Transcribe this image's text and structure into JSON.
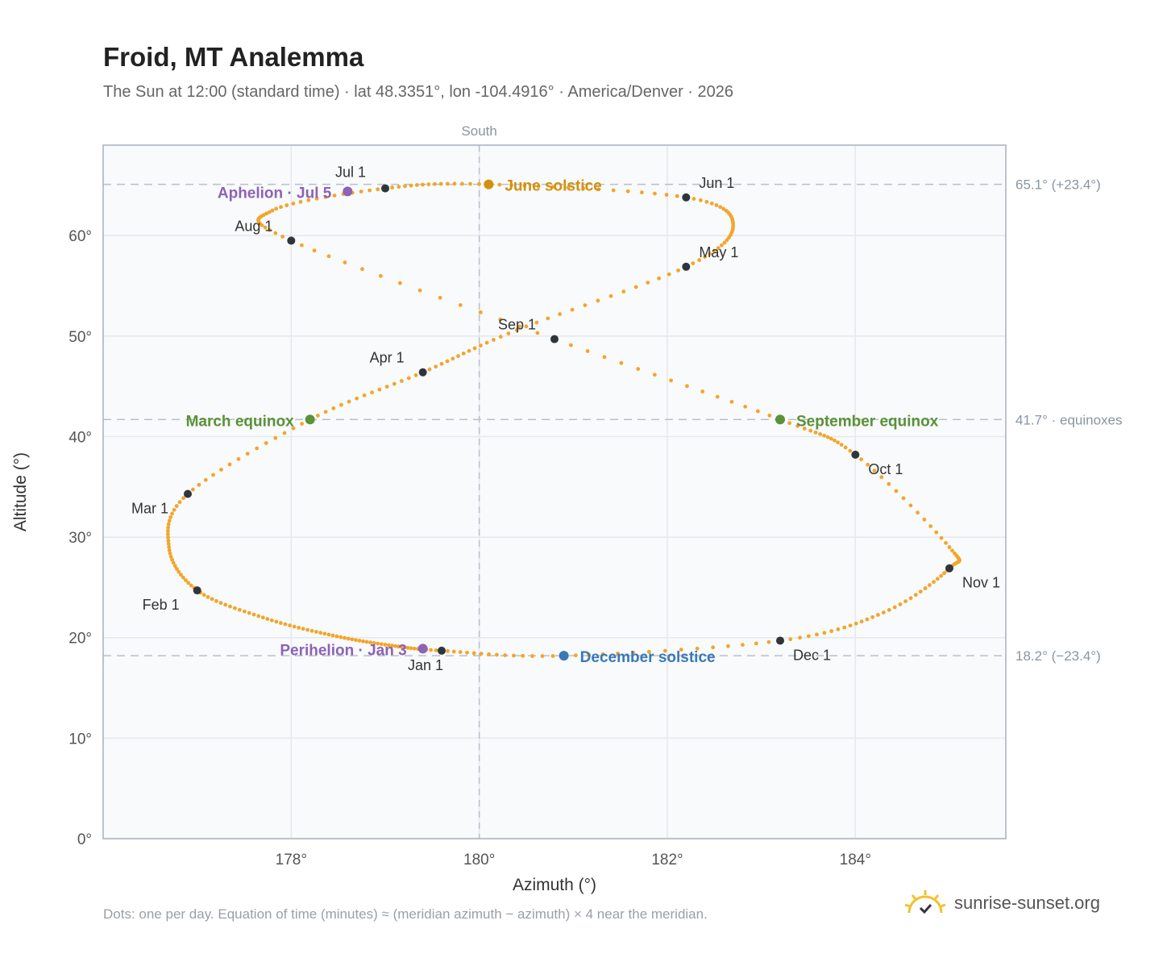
{
  "page": {
    "title": "Froid, MT Analemma",
    "subtitle": "The Sun at 12:00 (standard time) · lat 48.3351°, lon -104.4916° · America/Denver · 2026",
    "footnote": "Dots: one per day. Equation of time (minutes) ≈ (meridian azimuth − azimuth) × 4 near the meridian.",
    "brand": "sunrise-sunset.org",
    "brand_icon": "sun-logo-icon"
  },
  "colors": {
    "analemma": "#F2A62A",
    "month_marker": "#2F353B",
    "june_solstice": "#D4900C",
    "december_solstice": "#3A78B6",
    "equinox": "#5A9237",
    "apsis": "#8E62B4",
    "grid": "#E5E8EC",
    "reference_line": "#B9C0C8",
    "plot_background": "#F8FAFC",
    "frame": "#A9B1BB"
  },
  "chart_data": {
    "type": "scatter",
    "xlabel": "Azimuth (°)",
    "ylabel": "Altitude (°)",
    "xlim": [
      176.0,
      185.6
    ],
    "ylim": [
      0,
      69
    ],
    "xticks": [
      178,
      180,
      182,
      184
    ],
    "xtick_labels": [
      "178°",
      "180°",
      "182°",
      "184°"
    ],
    "yticks": [
      0,
      10,
      20,
      30,
      40,
      50,
      60
    ],
    "ytick_labels": [
      "0°",
      "10°",
      "20°",
      "30°",
      "40°",
      "50°",
      "60°"
    ],
    "grid": true,
    "meridian": {
      "azimuth": 180,
      "label": "South"
    },
    "reference_lines": [
      {
        "altitude": 65.1,
        "label": "65.1° (+23.4°)"
      },
      {
        "altitude": 41.7,
        "label": "41.7° · equinoxes"
      },
      {
        "altitude": 18.2,
        "label": "18.2° (−23.4°)"
      }
    ],
    "series": [
      {
        "kind": "daily-path",
        "points": [
          [
            179.6,
            18.7
          ],
          [
            179.0,
            19.3
          ],
          [
            178.4,
            20.3
          ],
          [
            177.7,
            22.0
          ],
          [
            177.0,
            24.7
          ],
          [
            176.7,
            29.0
          ],
          [
            176.9,
            34.3
          ],
          [
            178.2,
            41.7
          ],
          [
            179.4,
            46.4
          ],
          [
            180.4,
            50.6
          ],
          [
            182.2,
            56.9
          ],
          [
            182.7,
            61.0
          ],
          [
            182.2,
            63.8
          ],
          [
            180.1,
            65.1
          ],
          [
            179.0,
            64.7
          ],
          [
            177.8,
            62.5
          ],
          [
            178.0,
            59.5
          ],
          [
            180.8,
            49.7
          ],
          [
            183.2,
            41.7
          ],
          [
            184.0,
            38.2
          ],
          [
            185.0,
            29.0
          ],
          [
            185.0,
            26.9
          ],
          [
            184.3,
            22.5
          ],
          [
            183.2,
            19.7
          ],
          [
            180.9,
            18.2
          ],
          [
            179.6,
            18.7
          ]
        ]
      }
    ],
    "month_markers": [
      {
        "label": "Jan 1",
        "az": 179.6,
        "alt": 18.7
      },
      {
        "label": "Feb 1",
        "az": 177.0,
        "alt": 24.7
      },
      {
        "label": "Mar 1",
        "az": 176.9,
        "alt": 34.3
      },
      {
        "label": "Apr 1",
        "az": 179.4,
        "alt": 46.4
      },
      {
        "label": "May 1",
        "az": 182.2,
        "alt": 56.9
      },
      {
        "label": "Jun 1",
        "az": 182.2,
        "alt": 63.8
      },
      {
        "label": "Jul 1",
        "az": 179.0,
        "alt": 64.7
      },
      {
        "label": "Aug 1",
        "az": 178.0,
        "alt": 59.5
      },
      {
        "label": "Sep 1",
        "az": 180.8,
        "alt": 49.7
      },
      {
        "label": "Oct 1",
        "az": 184.0,
        "alt": 38.2
      },
      {
        "label": "Nov 1",
        "az": 185.0,
        "alt": 26.9
      },
      {
        "label": "Dec 1",
        "az": 183.2,
        "alt": 19.7
      }
    ],
    "events": [
      {
        "label": "June solstice",
        "az": 180.1,
        "alt": 65.1,
        "color_key": "june_solstice"
      },
      {
        "label": "December solstice",
        "az": 180.9,
        "alt": 18.2,
        "color_key": "december_solstice"
      },
      {
        "label": "March equinox",
        "az": 178.2,
        "alt": 41.7,
        "color_key": "equinox"
      },
      {
        "label": "September equinox",
        "az": 183.2,
        "alt": 41.7,
        "color_key": "equinox"
      },
      {
        "label": "Aphelion · Jul 5",
        "az": 178.6,
        "alt": 64.4,
        "color_key": "apsis"
      },
      {
        "label": "Perihelion · Jan 3",
        "az": 179.4,
        "alt": 18.9,
        "color_key": "apsis"
      }
    ]
  }
}
